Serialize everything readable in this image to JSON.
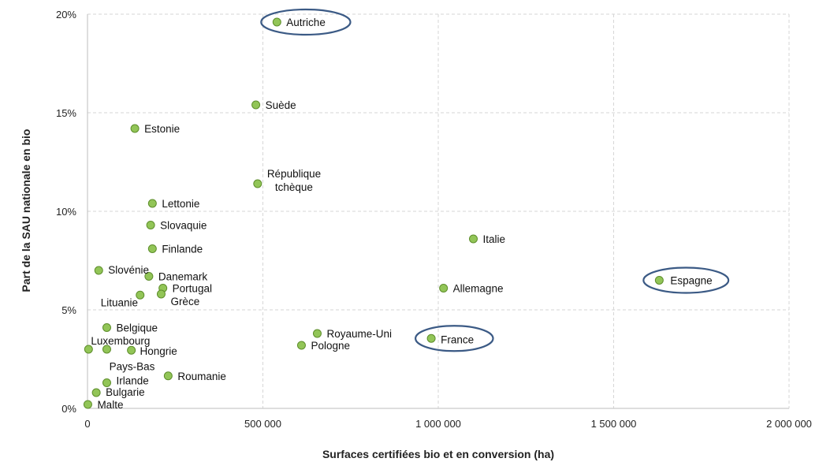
{
  "chart_data": {
    "type": "scatter",
    "title": "",
    "xlabel": "Surfaces certifiées bio et en conversion (ha)",
    "ylabel": "Part de la SAU nationale en bio",
    "xlim": [
      0,
      2000000
    ],
    "ylim": [
      0,
      20
    ],
    "x_ticks": [
      {
        "value": 0,
        "label": "0"
      },
      {
        "value": 500000,
        "label": "500 000"
      },
      {
        "value": 1000000,
        "label": "1 000 000"
      },
      {
        "value": 1500000,
        "label": "1 500 000"
      },
      {
        "value": 2000000,
        "label": "2 000 000"
      }
    ],
    "y_ticks": [
      {
        "value": 0,
        "label": "0%"
      },
      {
        "value": 5,
        "label": "5%"
      },
      {
        "value": 10,
        "label": "10%"
      },
      {
        "value": 15,
        "label": "15%"
      },
      {
        "value": 20,
        "label": "20%"
      }
    ],
    "grid": true,
    "marker_color": "#92c557",
    "highlight_color": "#3b5a85",
    "points": [
      {
        "label": "Autriche",
        "x": 540000,
        "y": 19.6,
        "lx": 12,
        "ly": 5,
        "highlight": true
      },
      {
        "label": "Suède",
        "x": 480000,
        "y": 15.4,
        "lx": 12,
        "ly": 5
      },
      {
        "label": "Estonie",
        "x": 135000,
        "y": 14.2,
        "lx": 12,
        "ly": 5
      },
      {
        "label": "République\ntchèque",
        "x": 485000,
        "y": 11.4,
        "lx": 12,
        "ly": -8
      },
      {
        "label": "Lettonie",
        "x": 185000,
        "y": 10.4,
        "lx": 12,
        "ly": 5
      },
      {
        "label": "Slovaquie",
        "x": 180000,
        "y": 9.3,
        "lx": 12,
        "ly": 5
      },
      {
        "label": "Finlande",
        "x": 185000,
        "y": 8.1,
        "lx": 12,
        "ly": 5
      },
      {
        "label": "Italie",
        "x": 1100000,
        "y": 8.6,
        "lx": 12,
        "ly": 5
      },
      {
        "label": "Slovénie",
        "x": 32000,
        "y": 7.0,
        "lx": 12,
        "ly": 4
      },
      {
        "label": "Danemark",
        "x": 175000,
        "y": 6.7,
        "lx": 12,
        "ly": 5
      },
      {
        "label": "Portugal",
        "x": 215000,
        "y": 6.1,
        "lx": 12,
        "ly": 5
      },
      {
        "label": "Grèce",
        "x": 210000,
        "y": 5.8,
        "lx": 12,
        "ly": 14
      },
      {
        "label": "Lituanie",
        "x": 150000,
        "y": 5.75,
        "lx": -50,
        "ly": 14
      },
      {
        "label": "Allemagne",
        "x": 1015000,
        "y": 6.1,
        "lx": 12,
        "ly": 5
      },
      {
        "label": "Espagne",
        "x": 1630000,
        "y": 6.5,
        "lx": 14,
        "ly": 5,
        "highlight": true
      },
      {
        "label": "Belgique",
        "x": 55000,
        "y": 4.1,
        "lx": 12,
        "ly": 5
      },
      {
        "label": "Royaume-Uni",
        "x": 655000,
        "y": 3.8,
        "lx": 12,
        "ly": 5
      },
      {
        "label": "France",
        "x": 980000,
        "y": 3.55,
        "lx": 12,
        "ly": 6,
        "highlight": true
      },
      {
        "label": "Pologne",
        "x": 610000,
        "y": 3.2,
        "lx": 12,
        "ly": 5
      },
      {
        "label": "Luxembourg",
        "x": 3000,
        "y": 3.0,
        "lx": 3,
        "ly": -6
      },
      {
        "label": "Hongrie",
        "x": 55000,
        "y": 3.0,
        "lx": 42,
        "ly": 7
      },
      {
        "label": "Pays-Bas",
        "x": 125000,
        "y": 2.95,
        "lx": -28,
        "ly": 25
      },
      {
        "label": "Roumanie",
        "x": 230000,
        "y": 1.65,
        "lx": 12,
        "ly": 5
      },
      {
        "label": "Irlande",
        "x": 55000,
        "y": 1.3,
        "lx": 12,
        "ly": 2
      },
      {
        "label": "Bulgarie",
        "x": 25000,
        "y": 0.8,
        "lx": 12,
        "ly": 4
      },
      {
        "label": "Malte",
        "x": 1000,
        "y": 0.2,
        "lx": 12,
        "ly": 5
      }
    ]
  }
}
